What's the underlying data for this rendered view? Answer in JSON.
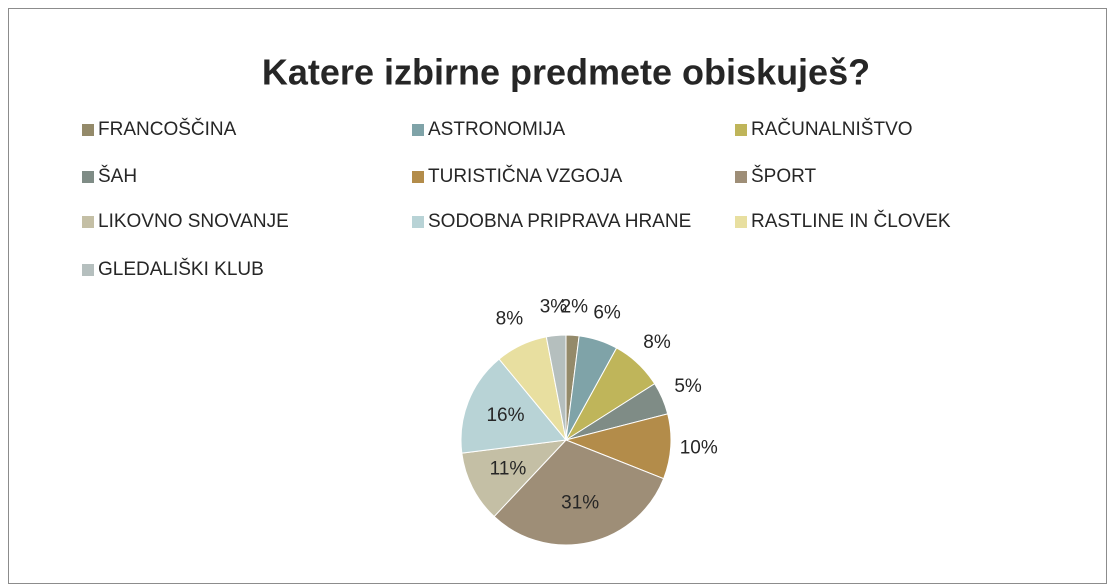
{
  "chart_data": {
    "type": "pie",
    "title": "Katere izbirne predmete obiskuješ?",
    "categories": [
      "FRANCOŠČINA",
      "ASTRONOMIJA",
      "RAČUNALNIŠTVO",
      "ŠAH",
      "TURISTIČNA VZGOJA",
      "ŠPORT",
      "LIKOVNO SNOVANJE",
      "SODOBNA PRIPRAVA HRANE",
      "RASTLINE IN ČLOVEK",
      "GLEDALIŠKI KLUB"
    ],
    "values": [
      2,
      6,
      8,
      5,
      10,
      31,
      11,
      16,
      8,
      3
    ],
    "value_labels": [
      "2%",
      "6%",
      "8%",
      "5%",
      "10%",
      "31%",
      "11%",
      "16%",
      "8%",
      "3%"
    ],
    "colors": [
      "#948a6a",
      "#7fa3a8",
      "#bfb55a",
      "#7f8c86",
      "#b38c4a",
      "#9e8e77",
      "#c4bfa5",
      "#b8d3d6",
      "#e8dfa0",
      "#b5bfbe"
    ],
    "legend": "top"
  }
}
